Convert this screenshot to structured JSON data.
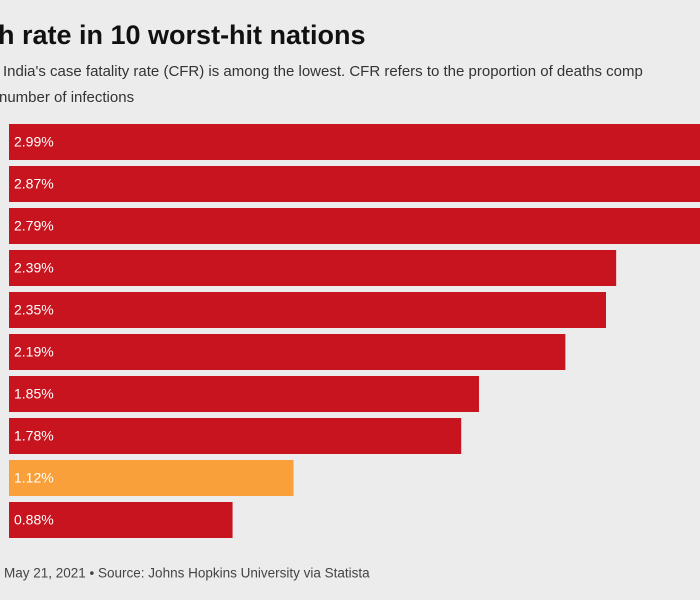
{
  "chart_data": {
    "type": "bar",
    "orientation": "horizontal",
    "title": "h rate in 10 worst-hit nations",
    "subtitle": [
      "India's case fatality rate (CFR) is among the lowest. CFR refers to the proportion of deaths comp",
      "number of infections"
    ],
    "values": [
      2.99,
      2.87,
      2.79,
      2.39,
      2.35,
      2.19,
      1.85,
      1.78,
      1.12,
      0.88
    ],
    "value_labels": [
      "2.99%",
      "2.87%",
      "2.79%",
      "2.39%",
      "2.35%",
      "2.19%",
      "1.85%",
      "1.78%",
      "1.12%",
      "0.88%"
    ],
    "colors": [
      "#c8141e",
      "#c8141e",
      "#c8141e",
      "#c8141e",
      "#c8141e",
      "#c8141e",
      "#c8141e",
      "#c8141e",
      "#f9a03a",
      "#c8141e"
    ],
    "xlim": [
      0,
      2.72
    ],
    "source": "May 21, 2021 • Source: Johns Hopkins University via Statista"
  }
}
